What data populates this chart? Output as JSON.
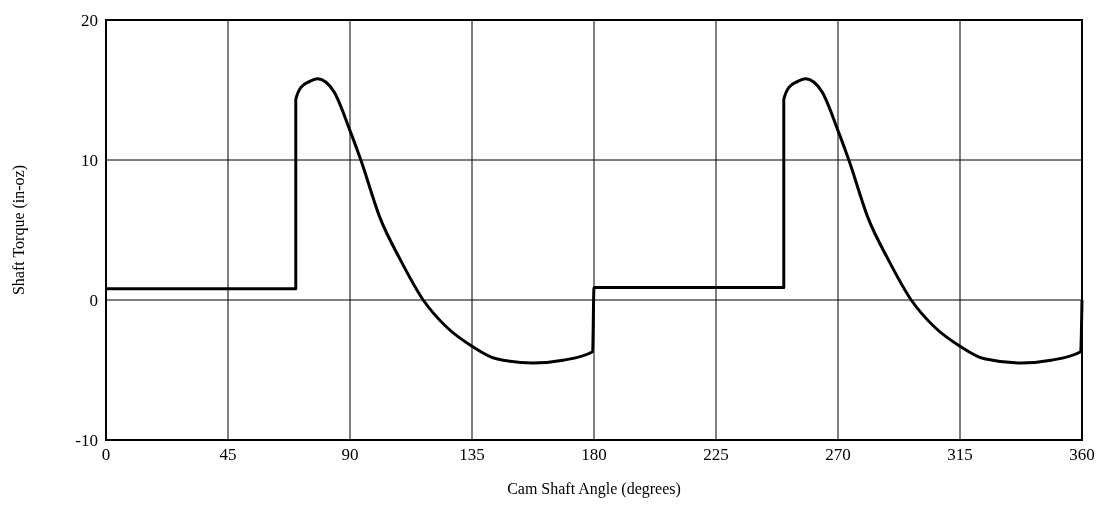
{
  "chart_data": {
    "type": "line",
    "xlabel": "Cam Shaft Angle (degrees)",
    "ylabel": "Shaft Torque (in-oz)",
    "xlim": [
      0,
      360
    ],
    "ylim": [
      -10,
      20
    ],
    "xticks": [
      0,
      45,
      90,
      135,
      180,
      225,
      270,
      315,
      360
    ],
    "yticks": [
      -10,
      0,
      10,
      20
    ],
    "grid": true,
    "marker": "none",
    "line_style": "solid",
    "series": [
      {
        "color": "#000000",
        "x": [
          0,
          70,
          70,
          72,
          75,
          78,
          84,
          90,
          94,
          101,
          108.5,
          117,
          126,
          135,
          144,
          157.5,
          168.6,
          179.5,
          180,
          250,
          250,
          252,
          255,
          258,
          264,
          270,
          274,
          281,
          288.5,
          297,
          306,
          315,
          324,
          337.5,
          348.6,
          359.5,
          360
        ],
        "values": [
          0.8,
          0.8,
          14.3,
          15.2,
          15.6,
          15.8,
          14.9,
          12.1,
          10,
          5.9,
          2.9,
          0,
          -2,
          -3.3,
          -4.2,
          -4.5,
          -4.3,
          -3.7,
          0.9,
          0.9,
          14.3,
          15.2,
          15.6,
          15.8,
          14.9,
          12.1,
          10,
          5.9,
          2.9,
          0,
          -2,
          -3.3,
          -4.2,
          -4.5,
          -4.3,
          -3.7,
          0
        ]
      }
    ]
  }
}
